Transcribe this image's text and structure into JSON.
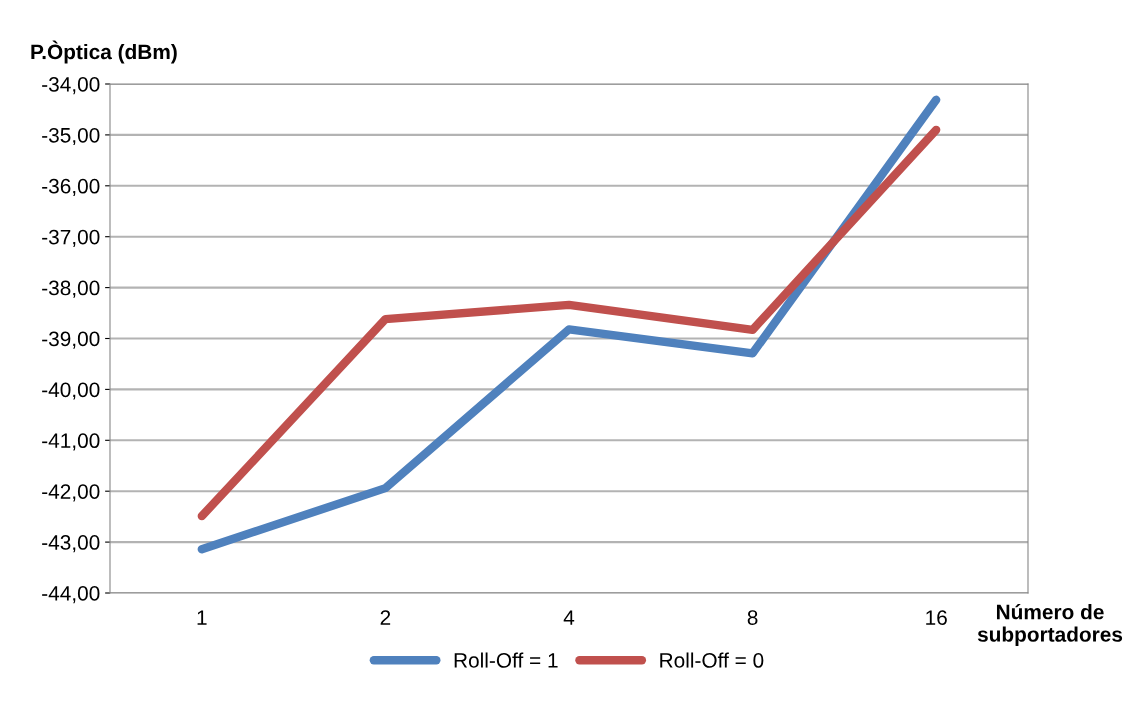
{
  "chart_data": {
    "type": "line",
    "ylabel": "P.Òptica (dBm)",
    "xlabel": "Número de\nsubportadores",
    "categories": [
      "1",
      "2",
      "4",
      "8",
      "16"
    ],
    "series": [
      {
        "name": "Roll-Off = 1",
        "color": "#4f81bd",
        "values": [
          -43.14,
          -41.94,
          -38.82,
          -39.29,
          -34.31
        ]
      },
      {
        "name": "Roll-Off = 0",
        "color": "#c0504d",
        "values": [
          -42.49,
          -38.62,
          -38.34,
          -38.83,
          -34.9
        ]
      }
    ],
    "ylim": [
      -44,
      -34
    ],
    "yticks": [
      {
        "value": -44,
        "label": "-44,00"
      },
      {
        "value": -43,
        "label": "-43,00"
      },
      {
        "value": -42,
        "label": "-42,00"
      },
      {
        "value": -41,
        "label": "-41,00"
      },
      {
        "value": -40,
        "label": "-40,00"
      },
      {
        "value": -39,
        "label": "-39,00"
      },
      {
        "value": -38,
        "label": "-38,00"
      },
      {
        "value": -37,
        "label": "-37,00"
      },
      {
        "value": -36,
        "label": "-36,00"
      },
      {
        "value": -35,
        "label": "-35,00"
      },
      {
        "value": -34,
        "label": "-34,00"
      }
    ],
    "grid": "y",
    "legend": "bottom",
    "marker": "none",
    "line_style": "solid"
  }
}
